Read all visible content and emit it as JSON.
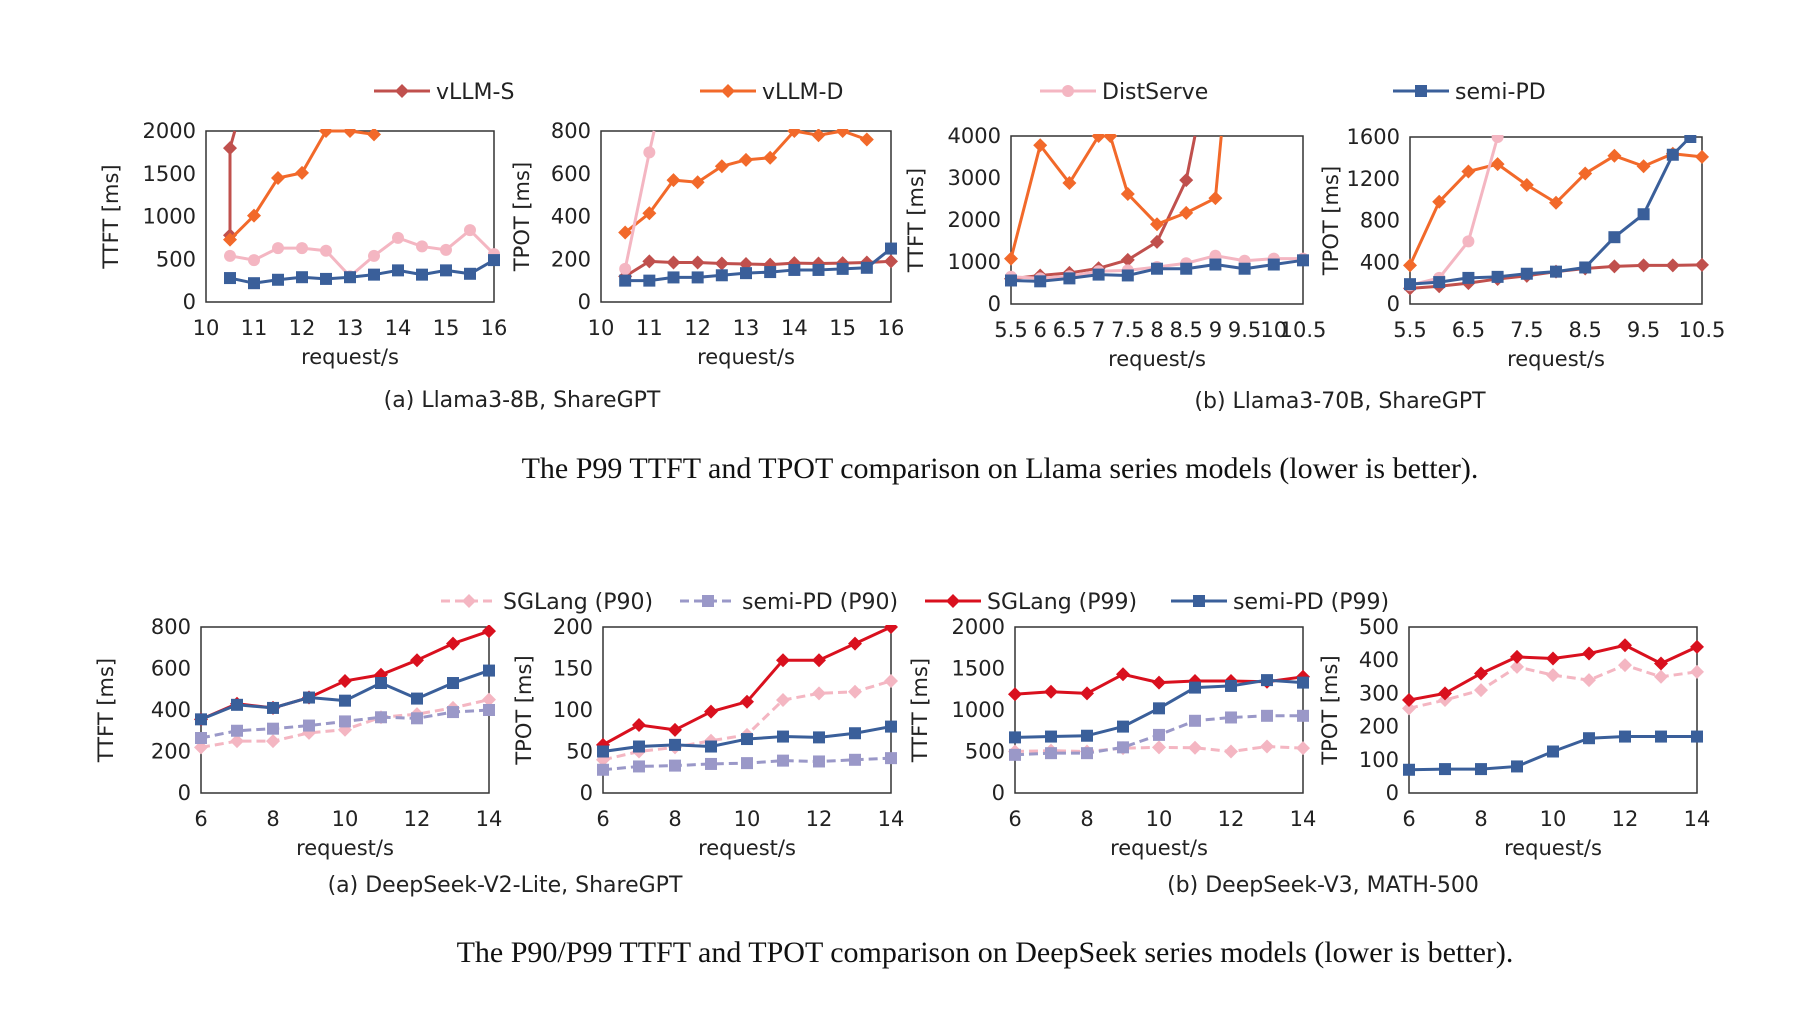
{
  "figure1": {
    "legend": [
      {
        "name": "vLLM-S",
        "color": "#c0504d",
        "marker": "diamond",
        "dash": false
      },
      {
        "name": "vLLM-D",
        "color": "#f2692a",
        "marker": "diamond",
        "dash": false
      },
      {
        "name": "DistServe",
        "color": "#f4b6c2",
        "marker": "circle",
        "dash": false
      },
      {
        "name": "semi-PD",
        "color": "#3a5f9a",
        "marker": "square",
        "dash": false
      }
    ],
    "sub_a": "(a) Llama3-8B, ShareGPT",
    "sub_b": "(b) Llama3-70B, ShareGPT",
    "caption": "The P99 TTFT and TPOT comparison on Llama series models (lower is better)."
  },
  "figure2": {
    "legend": [
      {
        "name": "SGLang (P90)",
        "color": "#f4b6c2",
        "marker": "diamond",
        "dash": true
      },
      {
        "name": "semi-PD (P90)",
        "color": "#9a98c8",
        "marker": "square",
        "dash": true
      },
      {
        "name": "SGLang (P99)",
        "color": "#d9101e",
        "marker": "diamond",
        "dash": false
      },
      {
        "name": "semi-PD (P99)",
        "color": "#3a5f9a",
        "marker": "square",
        "dash": false
      }
    ],
    "sub_a": "(a) DeepSeek-V2-Lite, ShareGPT",
    "sub_b": "(b) DeepSeek-V3, MATH-500",
    "caption": "The P90/P99 TTFT and TPOT comparison on DeepSeek series models (lower is better)."
  },
  "chart_data": [
    {
      "type": "line",
      "ylabel": "TTFT [ms]",
      "xlabel": "request/s",
      "xlim": [
        10,
        16
      ],
      "ylim": [
        0,
        2000
      ],
      "xticks": [
        "10",
        "11",
        "12",
        "13",
        "14",
        "15",
        "16"
      ],
      "yticks": [
        "0",
        "500",
        "1000",
        "1500",
        "2000"
      ],
      "series": [
        {
          "name": "vLLM-S",
          "x": [
            10.5,
            10.5,
            10.6
          ],
          "y": [
            780,
            1800,
            2000
          ]
        },
        {
          "name": "vLLM-D",
          "x": [
            10.5,
            11,
            11.5,
            12,
            12.5,
            13,
            13.5
          ],
          "y": [
            730,
            1010,
            1450,
            1510,
            2000,
            2000,
            1960
          ]
        },
        {
          "name": "DistServe",
          "x": [
            10.5,
            11,
            11.5,
            12,
            12.5,
            13,
            13.5,
            14,
            14.5,
            15,
            15.5,
            16
          ],
          "y": [
            540,
            490,
            630,
            630,
            600,
            300,
            540,
            750,
            650,
            610,
            840,
            560
          ]
        },
        {
          "name": "semi-PD",
          "x": [
            10.5,
            11,
            11.5,
            12,
            12.5,
            13,
            13.5,
            14,
            14.5,
            15,
            15.5,
            16
          ],
          "y": [
            280,
            220,
            260,
            290,
            270,
            290,
            320,
            370,
            320,
            370,
            330,
            490
          ]
        }
      ]
    },
    {
      "type": "line",
      "ylabel": "TPOT [ms]",
      "xlabel": "request/s",
      "xlim": [
        10,
        16
      ],
      "ylim": [
        0,
        800
      ],
      "xticks": [
        "10",
        "11",
        "12",
        "13",
        "14",
        "15",
        "16"
      ],
      "yticks": [
        "0",
        "200",
        "400",
        "600",
        "800"
      ],
      "series": [
        {
          "name": "vLLM-S",
          "x": [
            10.5,
            11,
            11.5,
            12,
            12.5,
            13,
            13.5,
            14,
            14.5,
            15,
            15.5,
            16
          ],
          "y": [
            120,
            190,
            185,
            185,
            180,
            178,
            175,
            182,
            180,
            182,
            185,
            190
          ]
        },
        {
          "name": "vLLM-D",
          "x": [
            10.5,
            11,
            11.5,
            12,
            12.5,
            13,
            13.5,
            14,
            14.5,
            15,
            15.5
          ],
          "y": [
            325,
            415,
            570,
            560,
            635,
            665,
            675,
            800,
            780,
            800,
            760
          ]
        },
        {
          "name": "DistServe",
          "x": [
            10.5,
            11,
            11.1
          ],
          "y": [
            155,
            700,
            800
          ]
        },
        {
          "name": "semi-PD",
          "x": [
            10.5,
            11,
            11.5,
            12,
            12.5,
            13,
            13.5,
            14,
            14.5,
            15,
            15.5,
            16
          ],
          "y": [
            100,
            100,
            115,
            115,
            125,
            135,
            140,
            150,
            150,
            155,
            160,
            250
          ]
        }
      ]
    },
    {
      "type": "line",
      "ylabel": "TTFT [ms]",
      "xlabel": "request/s",
      "xlim": [
        5.5,
        10.5
      ],
      "ylim": [
        0,
        4000
      ],
      "xticks": [
        "5.5",
        "6.5",
        "7.5",
        "8.5",
        "9.5",
        "10.5",
        "6",
        "7",
        "8",
        "9",
        "10"
      ],
      "ytick_values": [
        0,
        1000,
        2000,
        3000,
        4000
      ],
      "yticks": [
        "0",
        "1000",
        "2000",
        "3000",
        "4000"
      ],
      "series": [
        {
          "name": "vLLM-S",
          "x": [
            5.5,
            6,
            6.5,
            7,
            7.5,
            8,
            8.5,
            8.65
          ],
          "y": [
            600,
            680,
            740,
            850,
            1050,
            1480,
            2950,
            4000
          ]
        },
        {
          "name": "vLLM-D",
          "x": [
            5.5,
            6,
            6.5,
            7,
            7.2,
            7.5,
            8,
            8.5,
            9,
            9.1
          ],
          "y": [
            1080,
            3780,
            2880,
            4000,
            4000,
            2620,
            1900,
            2170,
            2520,
            4000
          ]
        },
        {
          "name": "DistServe",
          "x": [
            5.5,
            6,
            6.5,
            7,
            7.5,
            8,
            8.5,
            9,
            9.5,
            10,
            10.5
          ],
          "y": [
            650,
            610,
            660,
            780,
            800,
            880,
            970,
            1150,
            1030,
            1080,
            1080
          ]
        },
        {
          "name": "semi-PD",
          "x": [
            5.5,
            6,
            6.5,
            7,
            7.5,
            8,
            8.5,
            9,
            9.5,
            10,
            10.5
          ],
          "y": [
            560,
            540,
            610,
            700,
            680,
            840,
            840,
            940,
            840,
            940,
            1040
          ]
        }
      ]
    },
    {
      "type": "line",
      "ylabel": "TPOT [ms]",
      "xlabel": "request/s",
      "xlim": [
        5.5,
        10.5
      ],
      "ylim": [
        0,
        1600
      ],
      "xticks": [
        "5.5",
        "6.5",
        "7.5",
        "8.5",
        "9.5",
        "10.5"
      ],
      "yticks": [
        "0",
        "400",
        "800",
        "1200",
        "1600"
      ],
      "series": [
        {
          "name": "vLLM-S",
          "x": [
            5.5,
            6,
            6.5,
            7,
            7.5,
            8,
            8.5,
            9,
            9.5,
            10,
            10.5
          ],
          "y": [
            150,
            170,
            200,
            240,
            270,
            310,
            340,
            360,
            370,
            370,
            375
          ]
        },
        {
          "name": "vLLM-D",
          "x": [
            5.5,
            6,
            6.5,
            7,
            7.5,
            8,
            8.5,
            9,
            9.5,
            10,
            10.5
          ],
          "y": [
            370,
            980,
            1270,
            1340,
            1140,
            970,
            1250,
            1420,
            1320,
            1440,
            1410
          ]
        },
        {
          "name": "DistServe",
          "x": [
            5.5,
            6,
            6.5,
            7
          ],
          "y": [
            180,
            250,
            600,
            1600
          ]
        },
        {
          "name": "semi-PD",
          "x": [
            5.5,
            6,
            6.5,
            7,
            7.5,
            8,
            8.5,
            9,
            9.5,
            10,
            10.3
          ],
          "y": [
            190,
            210,
            250,
            260,
            290,
            310,
            350,
            640,
            860,
            1430,
            1600
          ]
        }
      ]
    },
    {
      "type": "line",
      "ylabel": "TTFT [ms]",
      "xlabel": "request/s",
      "xlim": [
        6,
        14
      ],
      "ylim": [
        0,
        800
      ],
      "xticks": [
        "6",
        "8",
        "10",
        "12",
        "14"
      ],
      "yticks": [
        "0",
        "200",
        "400",
        "600",
        "800"
      ],
      "series": [
        {
          "name": "SGLang (P90)",
          "x": [
            6,
            7,
            8,
            9,
            10,
            11,
            12,
            13,
            14
          ],
          "y": [
            220,
            250,
            250,
            290,
            305,
            365,
            380,
            410,
            450
          ]
        },
        {
          "name": "semi-PD (P90)",
          "x": [
            6,
            7,
            8,
            9,
            10,
            11,
            12,
            13,
            14
          ],
          "y": [
            265,
            300,
            310,
            325,
            345,
            365,
            360,
            390,
            400
          ]
        },
        {
          "name": "SGLang (P99)",
          "x": [
            6,
            7,
            8,
            9,
            10,
            11,
            12,
            13,
            14
          ],
          "y": [
            355,
            430,
            410,
            460,
            540,
            570,
            640,
            720,
            780
          ]
        },
        {
          "name": "semi-PD (P99)",
          "x": [
            6,
            7,
            8,
            9,
            10,
            11,
            12,
            13,
            14
          ],
          "y": [
            355,
            425,
            410,
            460,
            445,
            530,
            455,
            530,
            590
          ]
        }
      ]
    },
    {
      "type": "line",
      "ylabel": "TPOT [ms]",
      "xlabel": "request/s",
      "xlim": [
        6,
        14
      ],
      "ylim": [
        0,
        200
      ],
      "xticks": [
        "6",
        "8",
        "10",
        "12",
        "14"
      ],
      "yticks": [
        "0",
        "50",
        "100",
        "150",
        "200"
      ],
      "series": [
        {
          "name": "SGLang (P90)",
          "x": [
            6,
            7,
            8,
            9,
            10,
            11,
            12,
            13,
            14
          ],
          "y": [
            40,
            50,
            55,
            63,
            70,
            112,
            120,
            122,
            135
          ]
        },
        {
          "name": "semi-PD (P90)",
          "x": [
            6,
            7,
            8,
            9,
            10,
            11,
            12,
            13,
            14
          ],
          "y": [
            28,
            32,
            33,
            35,
            36,
            39,
            38,
            40,
            42
          ]
        },
        {
          "name": "SGLang (P99)",
          "x": [
            6,
            7,
            8,
            9,
            10,
            11,
            12,
            13,
            14
          ],
          "y": [
            58,
            82,
            76,
            98,
            110,
            160,
            160,
            180,
            200
          ]
        },
        {
          "name": "semi-PD (P99)",
          "x": [
            6,
            7,
            8,
            9,
            10,
            11,
            12,
            13,
            14
          ],
          "y": [
            50,
            56,
            58,
            56,
            65,
            68,
            67,
            72,
            80
          ]
        }
      ]
    },
    {
      "type": "line",
      "ylabel": "TTFT [ms]",
      "xlabel": "request/s",
      "xlim": [
        6,
        14
      ],
      "ylim": [
        0,
        2000
      ],
      "xticks": [
        "6",
        "8",
        "10",
        "12",
        "14"
      ],
      "yticks": [
        "0",
        "500",
        "1000",
        "1500",
        "2000"
      ],
      "series": [
        {
          "name": "SGLang (P90)",
          "x": [
            6,
            7,
            8,
            9,
            10,
            11,
            12,
            13,
            14
          ],
          "y": [
            500,
            510,
            500,
            540,
            550,
            545,
            500,
            560,
            540
          ]
        },
        {
          "name": "semi-PD (P90)",
          "x": [
            6,
            7,
            8,
            9,
            10,
            11,
            12,
            13,
            14
          ],
          "y": [
            460,
            480,
            480,
            550,
            700,
            870,
            910,
            930,
            930
          ]
        },
        {
          "name": "SGLang (P99)",
          "x": [
            6,
            7,
            8,
            9,
            10,
            11,
            12,
            13,
            14
          ],
          "y": [
            1190,
            1220,
            1200,
            1430,
            1330,
            1350,
            1350,
            1340,
            1400
          ]
        },
        {
          "name": "semi-PD (P99)",
          "x": [
            6,
            7,
            8,
            9,
            10,
            11,
            12,
            13,
            14
          ],
          "y": [
            670,
            680,
            690,
            800,
            1020,
            1270,
            1290,
            1360,
            1330
          ]
        }
      ]
    },
    {
      "type": "line",
      "ylabel": "TPOT [ms]",
      "xlabel": "request/s",
      "xlim": [
        6,
        14
      ],
      "ylim": [
        0,
        500
      ],
      "xticks": [
        "6",
        "8",
        "10",
        "12",
        "14"
      ],
      "yticks": [
        "0",
        "100",
        "200",
        "300",
        "400",
        "500"
      ],
      "series": [
        {
          "name": "SGLang (P90)",
          "x": [
            6,
            7,
            8,
            9,
            10,
            11,
            12,
            13,
            14
          ],
          "y": [
            255,
            280,
            310,
            380,
            355,
            340,
            385,
            350,
            365
          ]
        },
        {
          "name": "SGLang (P99)",
          "x": [
            6,
            7,
            8,
            9,
            10,
            11,
            12,
            13,
            14
          ],
          "y": [
            280,
            300,
            360,
            410,
            405,
            420,
            445,
            390,
            440
          ]
        },
        {
          "name": "semi-PD (P99)",
          "x": [
            6,
            7,
            8,
            9,
            10,
            11,
            12,
            13,
            14
          ],
          "y": [
            70,
            72,
            72,
            80,
            125,
            165,
            170,
            170,
            170
          ]
        }
      ]
    }
  ]
}
